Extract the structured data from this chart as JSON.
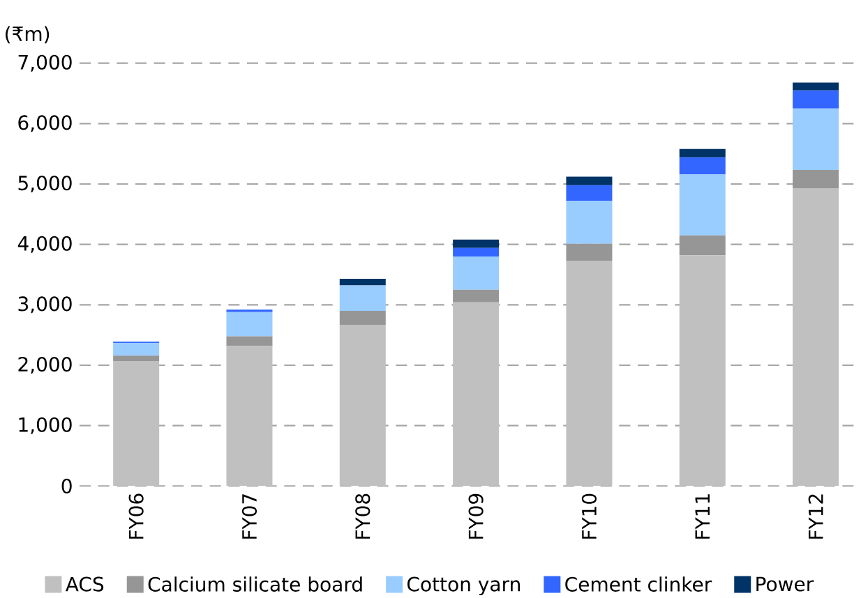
{
  "chart_data": {
    "type": "bar",
    "stacked": true,
    "ylabel": "(₹m)",
    "categories": [
      "FY06",
      "FY07",
      "FY08",
      "FY09",
      "FY10",
      "FY11",
      "FY12"
    ],
    "series": [
      {
        "name": "ACS",
        "color": "#c0c0c0",
        "values": [
          2070,
          2320,
          2670,
          3040,
          3730,
          3820,
          4930
        ]
      },
      {
        "name": "Calcium silicate board",
        "color": "#969696",
        "values": [
          90,
          160,
          230,
          210,
          280,
          330,
          300
        ]
      },
      {
        "name": "Cotton yarn",
        "color": "#99ccff",
        "values": [
          210,
          400,
          420,
          550,
          710,
          1010,
          1020
        ]
      },
      {
        "name": "Cement clinker",
        "color": "#3366ff",
        "values": [
          20,
          40,
          0,
          140,
          260,
          280,
          300
        ]
      },
      {
        "name": "Power",
        "color": "#003366",
        "values": [
          0,
          0,
          110,
          140,
          140,
          140,
          130
        ]
      }
    ],
    "ylim": [
      0,
      7000
    ],
    "yticks": [
      0,
      {
        "value": 1000,
        "label": "1,000"
      },
      {
        "value": 2000,
        "label": "2,000"
      },
      {
        "value": 3000,
        "label": "3,000"
      },
      {
        "value": 4000,
        "label": "4,000"
      },
      {
        "value": 5000,
        "label": "5,000"
      },
      {
        "value": 6000,
        "label": "6,000"
      },
      {
        "value": 7000,
        "label": "7,000"
      }
    ],
    "grid": "y",
    "legend": "bottom"
  }
}
